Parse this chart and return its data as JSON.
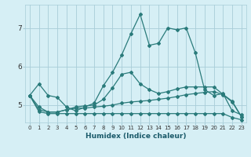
{
  "xlabel": "Humidex (Indice chaleur)",
  "bg_color": "#d6eff5",
  "grid_color": "#a8cdd8",
  "line_color": "#2a7b7b",
  "xlim": [
    -0.5,
    23.5
  ],
  "ylim": [
    4.55,
    7.6
  ],
  "yticks": [
    5,
    6,
    7
  ],
  "xticks": [
    0,
    1,
    2,
    3,
    4,
    5,
    6,
    7,
    8,
    9,
    10,
    11,
    12,
    13,
    14,
    15,
    16,
    17,
    18,
    19,
    20,
    21,
    22,
    23
  ],
  "line1_x": [
    0,
    1,
    2,
    3,
    4,
    5,
    6,
    7,
    8,
    9,
    10,
    11,
    12,
    13,
    14,
    15,
    16,
    17,
    18,
    19,
    20,
    21,
    22,
    23
  ],
  "line1_y": [
    5.25,
    5.55,
    5.25,
    5.2,
    4.95,
    4.85,
    4.95,
    5.05,
    5.5,
    5.85,
    6.3,
    6.85,
    7.35,
    6.55,
    6.6,
    7.0,
    6.95,
    7.0,
    6.35,
    5.4,
    5.25,
    5.3,
    4.85,
    4.75
  ],
  "line2_x": [
    0,
    1,
    2,
    3,
    4,
    5,
    6,
    7,
    8,
    9,
    10,
    11,
    12,
    13,
    14,
    15,
    16,
    17,
    18,
    19,
    20,
    21,
    22,
    23
  ],
  "line2_y": [
    5.25,
    4.95,
    4.82,
    4.82,
    4.88,
    4.95,
    4.98,
    5.0,
    5.15,
    5.45,
    5.8,
    5.85,
    5.55,
    5.4,
    5.3,
    5.35,
    5.42,
    5.47,
    5.47,
    5.47,
    5.47,
    5.28,
    5.1,
    4.7
  ],
  "line3_x": [
    0,
    1,
    2,
    3,
    4,
    5,
    6,
    7,
    8,
    9,
    10,
    11,
    12,
    13,
    14,
    15,
    16,
    17,
    18,
    19,
    20,
    21,
    22,
    23
  ],
  "line3_y": [
    5.25,
    4.88,
    4.82,
    4.82,
    4.88,
    4.92,
    4.92,
    4.95,
    4.97,
    5.0,
    5.05,
    5.08,
    5.1,
    5.12,
    5.15,
    5.18,
    5.22,
    5.27,
    5.3,
    5.33,
    5.35,
    5.27,
    5.08,
    4.7
  ],
  "line4_x": [
    0,
    1,
    2,
    3,
    4,
    5,
    6,
    7,
    8,
    9,
    10,
    11,
    12,
    13,
    14,
    15,
    16,
    17,
    18,
    19,
    20,
    21,
    22,
    23
  ],
  "line4_y": [
    5.25,
    4.83,
    4.78,
    4.78,
    4.78,
    4.78,
    4.78,
    4.78,
    4.78,
    4.78,
    4.78,
    4.78,
    4.78,
    4.78,
    4.78,
    4.78,
    4.78,
    4.78,
    4.78,
    4.78,
    4.78,
    4.78,
    4.68,
    4.62
  ]
}
